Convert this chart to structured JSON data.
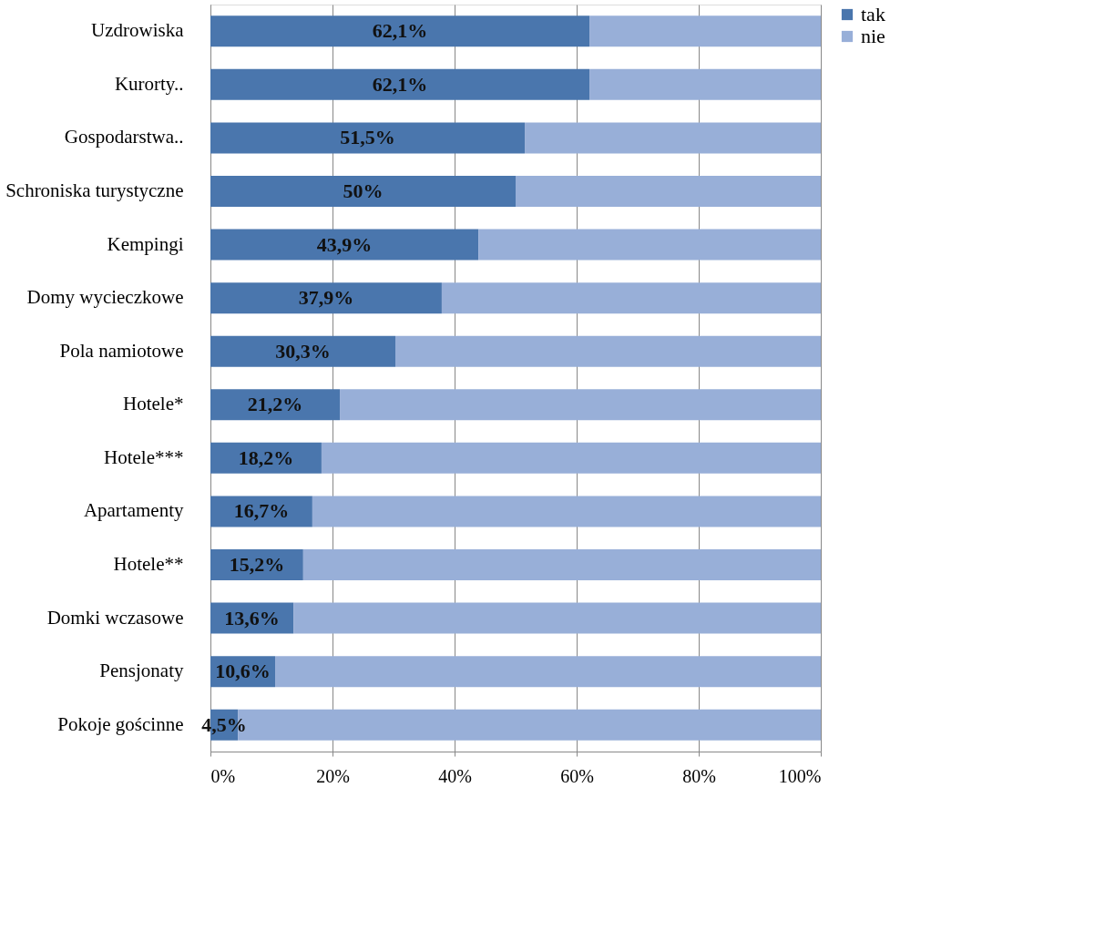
{
  "chart_data": {
    "type": "bar",
    "orientation": "horizontal",
    "stacked": true,
    "categories": [
      "Uzdrowiska",
      "Kurorty..",
      "Gospodarstwa..",
      "Schroniska turystyczne",
      "Kempingi",
      "Domy wycieczkowe",
      "Pola namiotowe",
      "Hotele*",
      "Hotele***",
      "Apartamenty",
      "Hotele**",
      "Domki wczasowe",
      "Pensjonaty",
      "Pokoje gościnne"
    ],
    "series": [
      {
        "name": "tak",
        "color": "#4a76ad",
        "values": [
          62.1,
          62.1,
          51.5,
          50,
          43.9,
          37.9,
          30.3,
          21.2,
          18.2,
          16.7,
          15.2,
          13.6,
          10.6,
          4.5
        ],
        "value_labels": [
          "62,1%",
          "62,1%",
          "51,5%",
          "50%",
          "43,9%",
          "37,9%",
          "30,3%",
          "21,2%",
          "18,2%",
          "16,7%",
          "15,2%",
          "13,6%",
          "10,6%",
          "4,5%"
        ]
      },
      {
        "name": "nie",
        "color": "#98afd8",
        "values": [
          37.9,
          37.9,
          48.5,
          50,
          56.1,
          62.1,
          69.7,
          78.8,
          81.8,
          83.3,
          84.8,
          86.4,
          89.4,
          95.5
        ]
      }
    ],
    "xlim": [
      0,
      100
    ],
    "xticks": [
      {
        "value": 0,
        "label": "0%"
      },
      {
        "value": 20,
        "label": "20%"
      },
      {
        "value": 40,
        "label": "40%"
      },
      {
        "value": 60,
        "label": "60%"
      },
      {
        "value": 80,
        "label": "80%"
      },
      {
        "value": 100,
        "label": "100%"
      }
    ],
    "grid": "x",
    "legend": "right"
  }
}
